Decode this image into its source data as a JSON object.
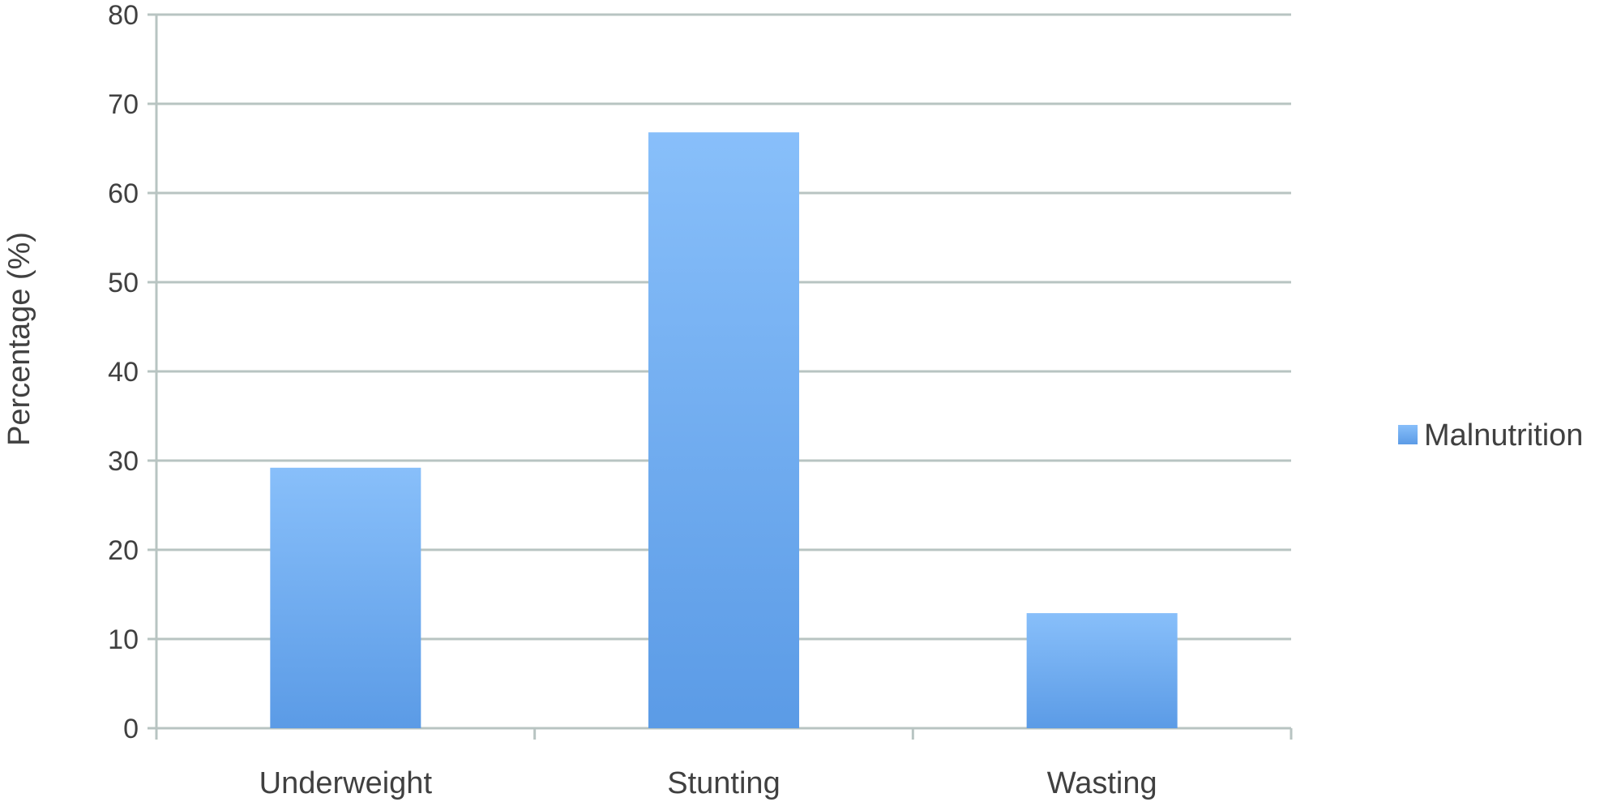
{
  "chart_data": {
    "type": "bar",
    "categories": [
      "Underweight",
      "Stunting",
      "Wasting"
    ],
    "series": [
      {
        "name": "Malnutrition",
        "values": [
          29.2,
          66.8,
          12.9
        ]
      }
    ],
    "title": "",
    "xlabel": "",
    "ylabel": "Percentage (%)",
    "ylim": [
      0,
      80
    ],
    "yticks": [
      0,
      10,
      20,
      30,
      40,
      50,
      60,
      70,
      80
    ],
    "grid": true,
    "legend_position": "right",
    "colors": {
      "bar_top": "#88bffa",
      "bar_bottom": "#5b9be6",
      "grid": "#b8c4c2",
      "text": "#404040"
    }
  }
}
